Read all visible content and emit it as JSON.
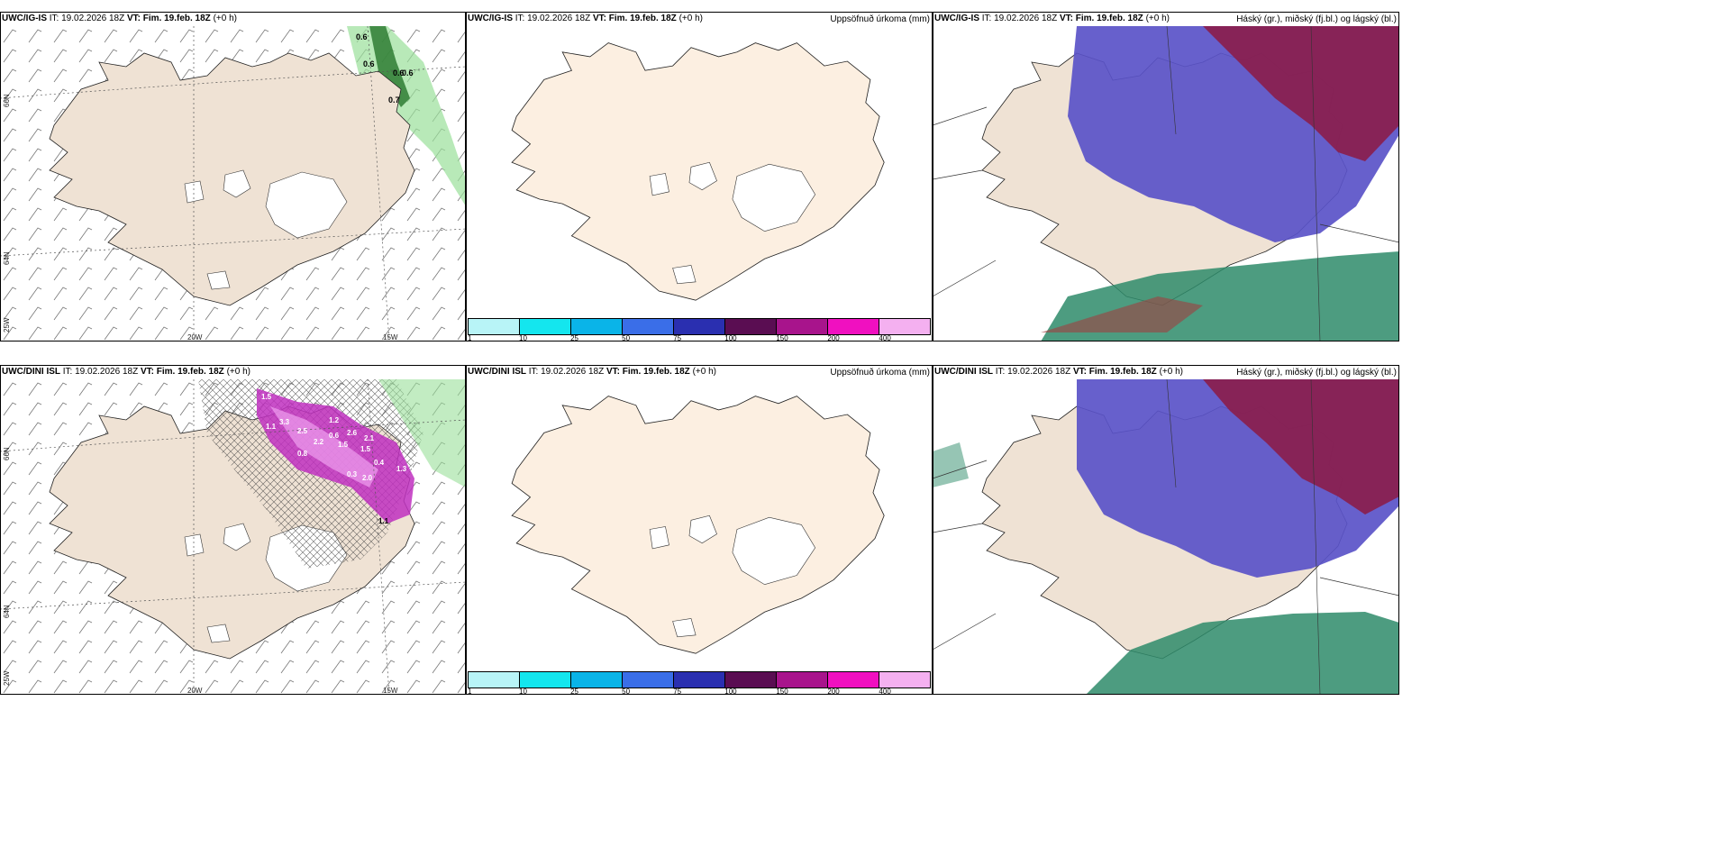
{
  "panels": {
    "p1": {
      "model": "UWC/IG-IS",
      "it_label": "IT:",
      "it": "19.02.2026 18Z",
      "vt_label": "VT:",
      "vt": "Fim. 19.feb. 18Z",
      "lead": "(+0 h)"
    },
    "p2": {
      "model": "UWC/IG-IS",
      "it_label": "IT:",
      "it": "19.02.2026 18Z",
      "vt_label": "VT:",
      "vt": "Fim. 19.feb. 18Z",
      "lead": "(+0 h)",
      "right": "Uppsöfnuð úrkoma (mm)"
    },
    "p3": {
      "model": "UWC/IG-IS",
      "it_label": "IT:",
      "it": "19.02.2026 18Z",
      "vt_label": "VT:",
      "vt": "Fim. 19.feb. 18Z",
      "lead": "(+0 h)",
      "right": "Háský (gr.), miðský (fj.bl.) og lágský (bl.)"
    },
    "p4": {
      "model": "UWC/DINI ISL",
      "it_label": "IT:",
      "it": "19.02.2026 18Z",
      "vt_label": "VT:",
      "vt": "Fim. 19.feb. 18Z",
      "lead": "(+0 h)"
    },
    "p5": {
      "model": "UWC/DINI ISL",
      "it_label": "IT:",
      "it": "19.02.2026 18Z",
      "vt_label": "VT:",
      "vt": "Fim. 19.feb. 18Z",
      "lead": "(+0 h)",
      "right": "Uppsöfnuð úrkoma (mm)"
    },
    "p6": {
      "model": "UWC/DINI ISL",
      "it_label": "IT:",
      "it": "19.02.2026 18Z",
      "vt_label": "VT:",
      "vt": "Fim. 19.feb. 18Z",
      "lead": "(+0 h)",
      "right": "Háský (gr.), miðský (fj.bl.) og lágský (bl.)"
    }
  },
  "axis_labels": {
    "lat66": "66N",
    "lat64": "64N",
    "lon25": "25W",
    "lon20": "20W",
    "lon15": "15W"
  },
  "colorbar": {
    "colors": [
      "#b8f4f7",
      "#14e6ee",
      "#0ab4e8",
      "#3a6ee8",
      "#2a2fb0",
      "#5a0d52",
      "#a8148c",
      "#f010c0",
      "#f4b0f0"
    ],
    "ticks": [
      "1",
      "10",
      "25",
      "50",
      "75",
      "100",
      "150",
      "200",
      "400"
    ]
  },
  "precip_labels_top": [
    "0.6",
    "0.6",
    "0.6",
    "0.6",
    "0.7"
  ],
  "precip_labels_bottom": [
    "1.5",
    "2.5",
    "2.2",
    "1.2",
    "0.6",
    "1.5",
    "2.6",
    "3.3",
    "2.0",
    "1.1",
    "0.8",
    "1.1",
    "2.1",
    "1.3",
    "0.4",
    "1.5",
    "1.2",
    "0.3"
  ],
  "colors": {
    "land_terrain": "#efe2d4",
    "land_precip": "#fcefe1",
    "glacier": "#ffffff",
    "high_cloud": "#8b1d4a",
    "mid_cloud": "#5a52c8",
    "low_cloud": "#2e8b6a"
  }
}
